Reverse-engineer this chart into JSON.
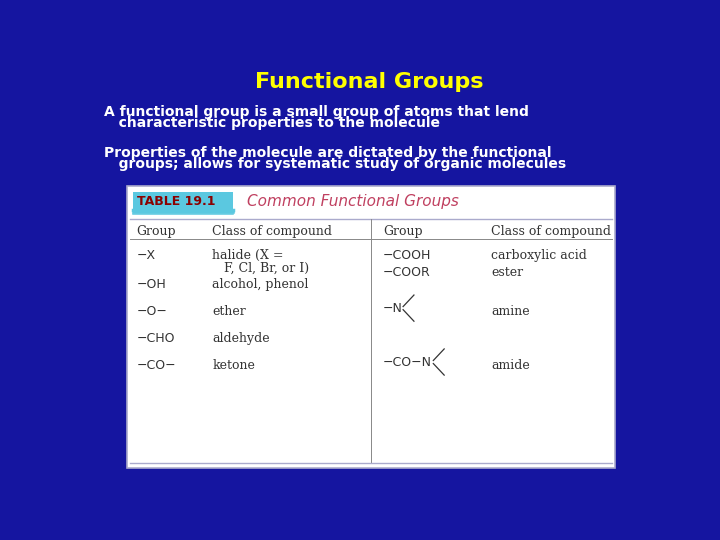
{
  "title": "Functional Groups",
  "title_color": "#FFFF00",
  "title_fontsize": 16,
  "bg_color": "#1515a0",
  "text_color": "#FFFFFF",
  "body_text_1a": "A functional group is a small group of atoms that lend",
  "body_text_1b": "   characteristic properties to the molecule",
  "body_text_2a": "Properties of the molecule are dictated by the functional",
  "body_text_2b": "   groups; allows for systematic study of organic molecules",
  "table_header": "TABLE 19.1",
  "table_title": "Common Functional Groups",
  "table_header_bg": "#5bc8e0",
  "table_header_text_color": "#8b0000",
  "table_title_color": "#c04060",
  "table_text_color": "#333333"
}
